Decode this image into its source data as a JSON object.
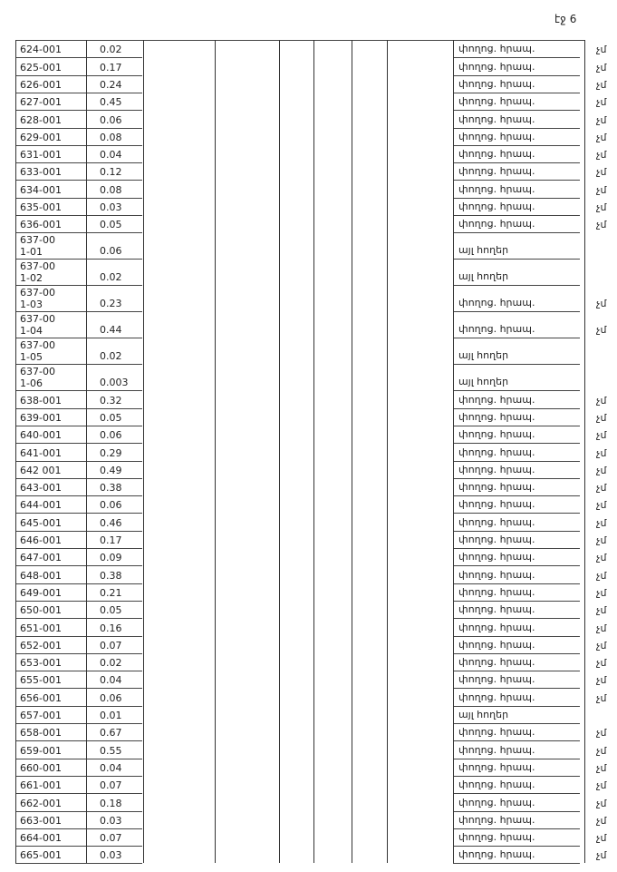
{
  "page_number": "էջ 6",
  "table": {
    "rows": [
      [
        "624-001",
        "0.02",
        "փողոց. հրապ.",
        "չմ"
      ],
      [
        "625-001",
        "0.17",
        "փողոց. հրապ.",
        "չմ"
      ],
      [
        "626-001",
        "0.24",
        "փողոց. հրապ.",
        "չմ"
      ],
      [
        "627-001",
        "0.45",
        "փողոց. հրապ.",
        "չմ"
      ],
      [
        "628-001",
        "0.06",
        "փողոց. հրապ.",
        "չմ"
      ],
      [
        "629-001",
        "0.08",
        "փողոց. հրապ.",
        "չմ"
      ],
      [
        "631-001",
        "0.04",
        "փողոց. հրապ.",
        "չմ"
      ],
      [
        "633-001",
        "0.12",
        "փողոց. հրապ.",
        "չմ"
      ],
      [
        "634-001",
        "0.08",
        "փողոց. հրապ.",
        "չմ"
      ],
      [
        "635-001",
        "0.03",
        "փողոց. հրապ.",
        "չմ"
      ],
      [
        "636-001",
        "0.05",
        "փողոց. հրապ.",
        "չմ"
      ],
      [
        "637-001-01",
        "0.06",
        "այլ հողեր"
      ],
      [
        "637-001-02",
        "0.02",
        "այլ հողեր"
      ],
      [
        "637-001-03",
        "0.23",
        "փողոց. հրապ.",
        "չմ"
      ],
      [
        "637-001-04",
        "0.44",
        "փողոց. հրապ.",
        "չմ"
      ],
      [
        "637-001-05",
        "0.02",
        "այլ հողեր"
      ],
      [
        "637-001-06",
        "0.003",
        "այլ հողեր"
      ],
      [
        "638-001",
        "0.32",
        "փողոց. հրապ.",
        "չմ"
      ],
      [
        "639-001",
        "0.05",
        "փողոց. հրապ.",
        "չմ"
      ],
      [
        "640-001",
        "0.06",
        "փողոց. հրապ.",
        "չմ"
      ],
      [
        "641-001",
        "0.29",
        "փողոց. հրապ.",
        "չմ"
      ],
      [
        "642 001",
        "0.49",
        "փողոց. հրապ.",
        "չմ"
      ],
      [
        "643-001",
        "0.38",
        "փողոց. հրապ.",
        "չմ"
      ],
      [
        "644-001",
        "0.06",
        "փողոց. հրապ.",
        "չմ"
      ],
      [
        "645-001",
        "0.46",
        "փողոց. հրապ.",
        "չմ"
      ],
      [
        "646-001",
        "0.17",
        "փողոց. հրապ.",
        "չմ"
      ],
      [
        "647-001",
        "0.09",
        "փողոց. հրապ.",
        "չմ"
      ],
      [
        "648-001",
        "0.38",
        "փողոց. հրապ.",
        "չմ"
      ],
      [
        "649-001",
        "0.21",
        "փողոց. հրապ.",
        "չմ"
      ],
      [
        "650-001",
        "0.05",
        "փողոց. հրապ.",
        "չմ"
      ],
      [
        "651-001",
        "0.16",
        "փողոց. հրապ.",
        "չմ"
      ],
      [
        "652-001",
        "0.07",
        "փողոց. հրապ.",
        "չմ"
      ],
      [
        "653-001",
        "0.02",
        "փողոց. հրապ.",
        "չմ"
      ],
      [
        "655-001",
        "0.04",
        "փողոց. հրապ.",
        "չմ"
      ],
      [
        "656-001",
        "0.06",
        "փողոց. հրապ.",
        "չմ"
      ],
      [
        "657-001",
        "0.01",
        "այլ հողեր"
      ],
      [
        "658-001",
        "0.67",
        "փողոց. հրապ.",
        "չմ"
      ],
      [
        "659-001",
        "0.55",
        "փողոց. հրապ.",
        "չմ"
      ],
      [
        "660-001",
        "0.04",
        "փողոց. հրապ.",
        "չմ"
      ],
      [
        "661-001",
        "0.07",
        "փողոց. հրապ.",
        "չմ"
      ],
      [
        "662-001",
        "0.18",
        "փողոց. հրապ.",
        "չմ"
      ],
      [
        "663-001",
        "0.03",
        "փողոց. հրապ.",
        "չմ"
      ],
      [
        "664-001",
        "0.07",
        "փողոց. հրապ.",
        "չմ"
      ],
      [
        "665-001",
        "0.03",
        "փողոց. հրապ.",
        "չմ"
      ]
    ]
  }
}
